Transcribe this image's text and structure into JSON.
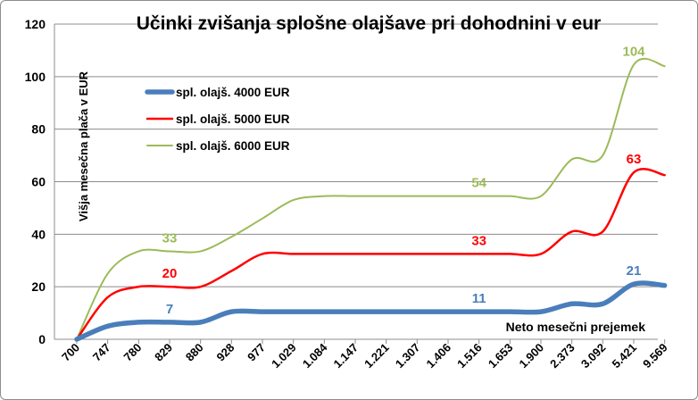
{
  "chart_data": {
    "type": "line",
    "title": "Učinki zvišanja splošne olajšave pri dohodnini  v eur",
    "xlabel": "Neto mesečni prejemek",
    "ylabel": "Višja mesečna plača v EUR",
    "ylim": [
      0,
      120
    ],
    "yticks": [
      0,
      20,
      40,
      60,
      80,
      100,
      120
    ],
    "grid": true,
    "legend_position": "left",
    "categories": [
      "700",
      "747",
      "780",
      "829",
      "880",
      "928",
      "977",
      "1.029",
      "1.084",
      "1.147",
      "1.221",
      "1.307",
      "1.406",
      "1.516",
      "1.653",
      "1.900",
      "2.373",
      "3.092",
      "5.421",
      "9.569"
    ],
    "series": [
      {
        "name": "spl. olajš. 4000 EUR",
        "color": "#4a7ebb",
        "values": [
          0,
          5,
          6.5,
          6.5,
          6.5,
          10.5,
          10.5,
          10.5,
          10.5,
          10.5,
          10.5,
          10.5,
          10.5,
          10.5,
          10.5,
          10.5,
          13.5,
          13.5,
          21,
          20.5
        ],
        "labels": [
          {
            "index": 3,
            "text": "7"
          },
          {
            "index": 13,
            "text": "11"
          },
          {
            "index": 18,
            "text": "21"
          }
        ]
      },
      {
        "name": "spl. olajš. 5000 EUR",
        "color": "#ff0000",
        "values": [
          0,
          16,
          20,
          20,
          20,
          26,
          32.5,
          32.5,
          32.5,
          32.5,
          32.5,
          32.5,
          32.5,
          32.5,
          32.5,
          32.5,
          41,
          41,
          63.5,
          62.5
        ],
        "labels": [
          {
            "index": 3,
            "text": "20"
          },
          {
            "index": 13,
            "text": "33"
          },
          {
            "index": 18,
            "text": "63"
          }
        ]
      },
      {
        "name": "spl. olajš. 6000 EUR",
        "color": "#9bbb59",
        "values": [
          0,
          25,
          33.5,
          33.5,
          33.5,
          39,
          46,
          53,
          54.5,
          54.5,
          54.5,
          54.5,
          54.5,
          54.5,
          54.5,
          54.5,
          68.5,
          70,
          104.5,
          104
        ],
        "labels": [
          {
            "index": 3,
            "text": "33"
          },
          {
            "index": 13,
            "text": "54"
          },
          {
            "index": 18,
            "text": "104"
          }
        ]
      }
    ]
  }
}
